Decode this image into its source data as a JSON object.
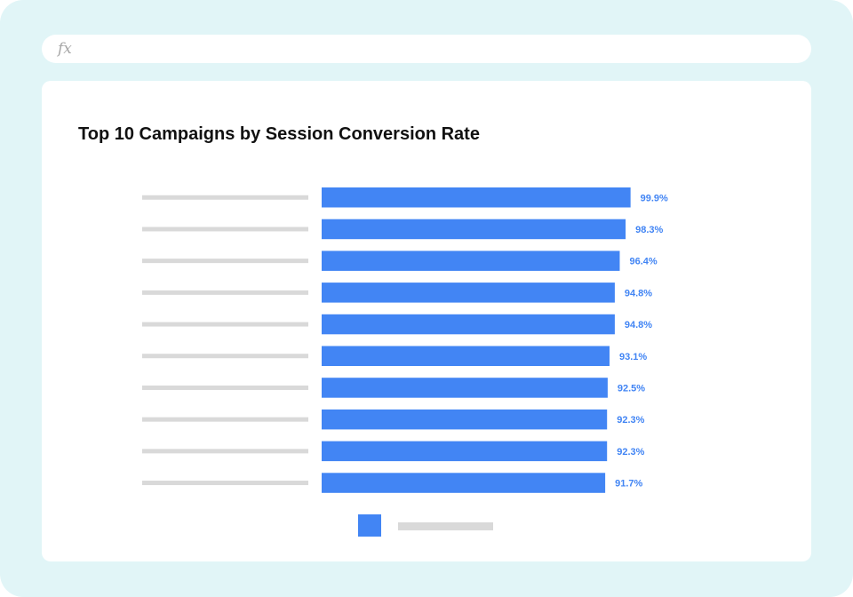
{
  "formula_bar": {
    "icon": "fx-icon",
    "icon_text": "fx",
    "value": ""
  },
  "chart_data": {
    "type": "bar",
    "orientation": "horizontal",
    "title": "Top 10 Campaigns by Session Conversion Rate",
    "xlabel": "",
    "ylabel": "",
    "xlim": [
      0,
      100
    ],
    "grid": false,
    "legend_position": "bottom",
    "categories": [
      "",
      "",
      "",
      "",
      "",
      "",
      "",
      "",
      "",
      ""
    ],
    "values": [
      99.9,
      98.3,
      96.4,
      94.8,
      94.8,
      93.1,
      92.5,
      92.3,
      92.3,
      91.7
    ],
    "value_labels": [
      "99.9%",
      "98.3%",
      "96.4%",
      "94.8%",
      "94.8%",
      "93.1%",
      "92.5%",
      "92.3%",
      "92.3%",
      "91.7%"
    ],
    "series": [
      {
        "values": [
          99.9,
          98.3,
          96.4,
          94.8,
          94.8,
          93.1,
          92.5,
          92.3,
          92.3,
          91.7
        ]
      }
    ],
    "colors": {
      "bar": "#4285f4",
      "value_label": "#4285f4",
      "placeholder": "#d9d9d9"
    }
  }
}
